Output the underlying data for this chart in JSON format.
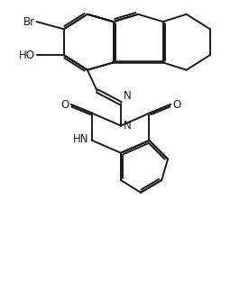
{
  "background": "#ffffff",
  "line_color": "#1a1a1a",
  "line_width": 1.4,
  "font_size": 8.5,
  "figsize": [
    2.76,
    3.12
  ],
  "dpi": 100,
  "xlim": [
    0,
    10
  ],
  "ylim": [
    0,
    11.3
  ]
}
